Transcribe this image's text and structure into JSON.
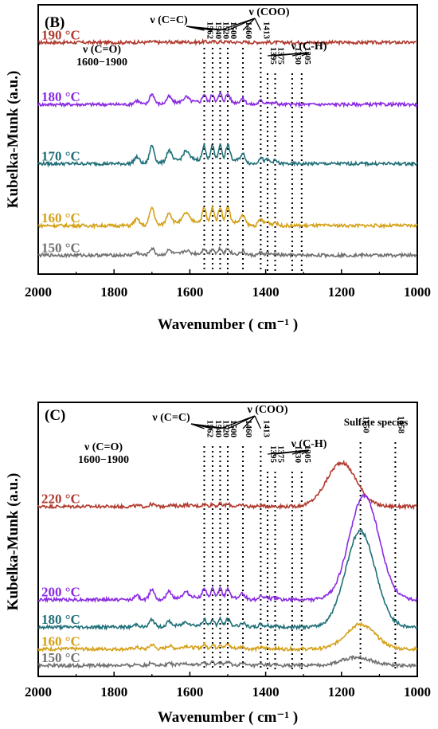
{
  "chart_data": [
    {
      "type": "line",
      "panel_label": "(B)",
      "xlabel": "Wavenumber ( cm⁻¹ )",
      "ylabel": "Kubelka-Munk (a.u.)",
      "xlim": [
        2000,
        1000
      ],
      "x_ticks": [
        "2000",
        "1800",
        "1600",
        "1400",
        "1200",
        "1000"
      ],
      "x_tick_values": [
        2000,
        1800,
        1600,
        1400,
        1200,
        1000
      ],
      "grid": false,
      "vlines": [
        1562,
        1540,
        1520,
        1500,
        1460,
        1413,
        1395,
        1375,
        1330,
        1305
      ],
      "band_labels": [
        "1562",
        "1540",
        "1520",
        "1500",
        "1460",
        "1413",
        "1395",
        "1375",
        "1330",
        "1305"
      ],
      "annotations": {
        "cc": "ν (C=C)",
        "coo": "ν (COO)",
        "co": "ν (C=O)",
        "co_range": "1600−1900",
        "ch": "ν (C-H)"
      },
      "series": [
        {
          "name": "190 °C",
          "color": "#b03a2e",
          "baseline": 0.86,
          "amp": 0.006
        },
        {
          "name": "180 °C",
          "color": "#8a2be2",
          "baseline": 0.63,
          "amp": 0.07
        },
        {
          "name": "170 °C",
          "color": "#1f6f78",
          "baseline": 0.41,
          "amp": 0.12
        },
        {
          "name": "160 °C",
          "color": "#d4a017",
          "baseline": 0.18,
          "amp": 0.12
        },
        {
          "name": "150 °C",
          "color": "#707070",
          "baseline": 0.07,
          "amp": 0.045
        }
      ]
    },
    {
      "type": "line",
      "panel_label": "(C)",
      "xlabel": "Wavenumber ( cm⁻¹ )",
      "ylabel": "Kubelka-Munk (a.u.)",
      "xlim": [
        2000,
        1000
      ],
      "x_ticks": [
        "2000",
        "1800",
        "1600",
        "1400",
        "1200",
        "1000"
      ],
      "x_tick_values": [
        2000,
        1800,
        1600,
        1400,
        1200,
        1000
      ],
      "grid": false,
      "vlines": [
        1562,
        1540,
        1520,
        1500,
        1460,
        1413,
        1395,
        1375,
        1330,
        1305,
        1150,
        1058
      ],
      "band_labels": [
        "1562",
        "1540",
        "1520",
        "1500",
        "1460",
        "1413",
        "1395",
        "1375",
        "1330",
        "1305",
        "1150",
        "1058"
      ],
      "annotations": {
        "cc": "ν (C=C)",
        "coo": "ν (COO)",
        "co": "ν (C=O)",
        "co_range": "1600−1900",
        "ch": "ν (C-H)",
        "sulfate": "Sulfate species"
      },
      "series": [
        {
          "name": "220 °C",
          "color": "#b03a2e",
          "baseline": 0.62,
          "amp": 0.015,
          "sulfate_peak": 1200,
          "sulfate_amp": 0.16
        },
        {
          "name": "200 °C",
          "color": "#8a2be2",
          "baseline": 0.28,
          "amp": 0.07,
          "sulfate_peak": 1140,
          "sulfate_amp": 0.38
        },
        {
          "name": "180 °C",
          "color": "#1f6f78",
          "baseline": 0.18,
          "amp": 0.05,
          "sulfate_peak": 1150,
          "sulfate_amp": 0.35
        },
        {
          "name": "160 °C",
          "color": "#d4a017",
          "baseline": 0.1,
          "amp": 0.03,
          "sulfate_peak": 1150,
          "sulfate_amp": 0.09
        },
        {
          "name": "150 °C",
          "color": "#707070",
          "baseline": 0.04,
          "amp": 0.02,
          "sulfate_peak": 1160,
          "sulfate_amp": 0.03
        }
      ]
    }
  ]
}
